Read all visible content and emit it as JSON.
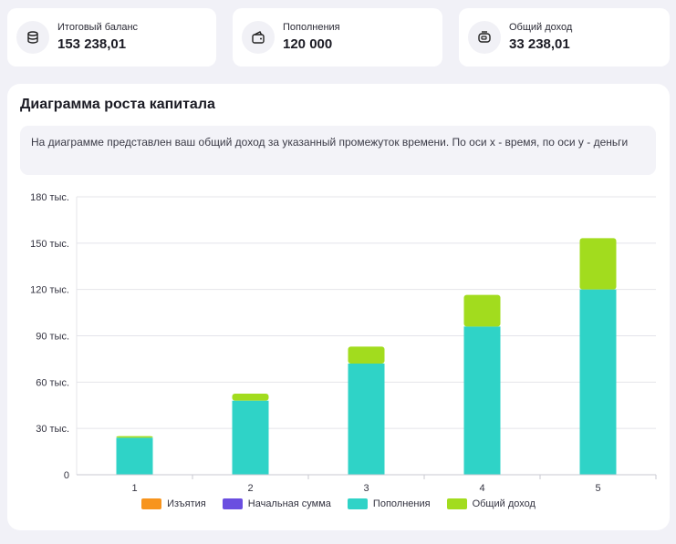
{
  "cards": [
    {
      "icon": "coins-stack-icon",
      "label": "Итоговый баланс",
      "value": "153 238,01"
    },
    {
      "icon": "wallet-icon",
      "label": "Пополнения",
      "value": "120 000"
    },
    {
      "icon": "piggy-bank-icon",
      "label": "Общий доход",
      "value": "33 238,01"
    }
  ],
  "panel": {
    "title": "Диаграмма роста капитала",
    "description": "На диаграмме представлен ваш общий доход за указанный промежуток времени. По оси x - время, по оси y - деньги"
  },
  "colors": {
    "withdrawals": "#f7941d",
    "initial": "#6a4ee0",
    "deposits": "#2fd3c7",
    "income": "#a2dc1e"
  },
  "chart_data": {
    "type": "bar",
    "stacked": true,
    "categories": [
      "1",
      "2",
      "3",
      "4",
      "5"
    ],
    "series": [
      {
        "name": "Изъятия",
        "color": "#f7941d",
        "values": [
          0,
          0,
          0,
          0,
          0
        ]
      },
      {
        "name": "Начальная сумма",
        "color": "#6a4ee0",
        "values": [
          0,
          0,
          0,
          0,
          0
        ]
      },
      {
        "name": "Пополнения",
        "color": "#2fd3c7",
        "values": [
          24000,
          48000,
          72000,
          96000,
          120000
        ]
      },
      {
        "name": "Общий доход",
        "color": "#a2dc1e",
        "values": [
          1000,
          4500,
          11000,
          20500,
          33238.01
        ]
      }
    ],
    "ylim": [
      0,
      180000
    ],
    "yticks": [
      {
        "value": 0,
        "label": "0"
      },
      {
        "value": 30000,
        "label": "30 тыс."
      },
      {
        "value": 60000,
        "label": "60 тыс."
      },
      {
        "value": 90000,
        "label": "90 тыс."
      },
      {
        "value": 120000,
        "label": "120 тыс."
      },
      {
        "value": 150000,
        "label": "150 тыс."
      },
      {
        "value": 180000,
        "label": "180 тыс."
      }
    ],
    "grid": true,
    "legend_position": "bottom"
  }
}
